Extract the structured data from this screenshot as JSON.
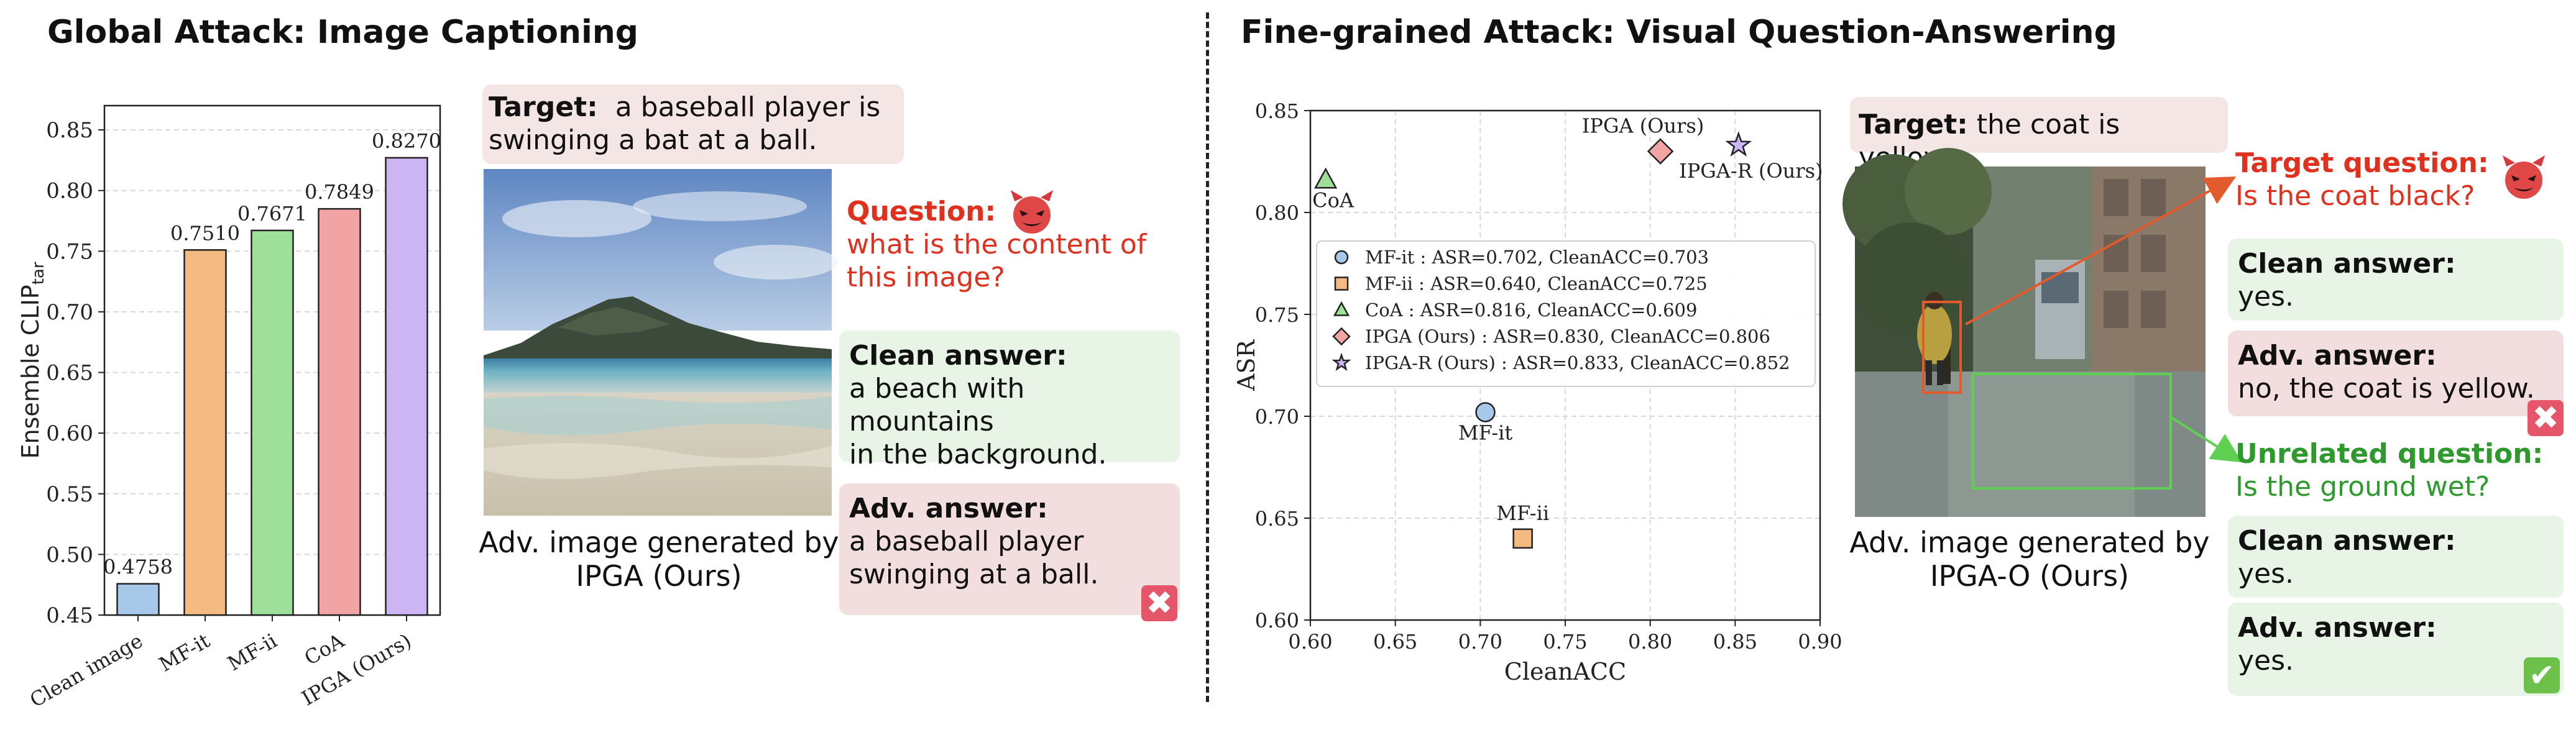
{
  "left_title": "Global Attack: Image Captioning",
  "right_title": "Fine-grained Attack: Visual Question-Answering",
  "chart_data": [
    {
      "type": "bar",
      "title": "",
      "ylabel": "Ensemble CLIP",
      "ylabel_sub": "tar",
      "xlabel": "",
      "ylim": [
        0.45,
        0.87
      ],
      "yticks": [
        "0.45",
        "0.50",
        "0.55",
        "0.60",
        "0.65",
        "0.70",
        "0.75",
        "0.80",
        "0.85"
      ],
      "grid": true,
      "categories": [
        "Clean image",
        "MF-it",
        "MF-ii",
        "CoA",
        "IPGA (Ours)"
      ],
      "values": [
        0.4758,
        0.751,
        0.7671,
        0.7849,
        0.827
      ],
      "value_labels": [
        "0.4758",
        "0.7510",
        "0.7671",
        "0.7849",
        "0.8270"
      ],
      "colors": [
        "#a8c8ea",
        "#f5b982",
        "#9ee09a",
        "#f2a4a4",
        "#cbb5f2"
      ]
    },
    {
      "type": "scatter",
      "title": "",
      "xlabel": "CleanACC",
      "ylabel": "ASR",
      "xlim": [
        0.6,
        0.9
      ],
      "ylim": [
        0.6,
        0.85
      ],
      "xticks": [
        "0.60",
        "0.65",
        "0.70",
        "0.75",
        "0.80",
        "0.85",
        "0.90"
      ],
      "yticks": [
        "0.60",
        "0.65",
        "0.70",
        "0.75",
        "0.80",
        "0.85"
      ],
      "grid": true,
      "legend_position": "center-left",
      "series": [
        {
          "name": "MF-it",
          "label": "MF-it",
          "x": 0.703,
          "y": 0.702,
          "marker": "circle",
          "color": "#a8c8ea",
          "legend": "MF-it : ASR=0.702, CleanACC=0.703"
        },
        {
          "name": "MF-ii",
          "label": "MF-ii",
          "x": 0.725,
          "y": 0.64,
          "marker": "square",
          "color": "#f5b982",
          "legend": "MF-ii : ASR=0.640, CleanACC=0.725"
        },
        {
          "name": "CoA",
          "label": "CoA",
          "x": 0.609,
          "y": 0.816,
          "marker": "triangle",
          "color": "#9ee09a",
          "legend": "CoA : ASR=0.816, CleanACC=0.609"
        },
        {
          "name": "IPGA (Ours)",
          "label": "IPGA (Ours)",
          "x": 0.806,
          "y": 0.83,
          "marker": "diamond",
          "color": "#f2a4a4",
          "legend": "IPGA (Ours) : ASR=0.830, CleanACC=0.806"
        },
        {
          "name": "IPGA-R (Ours)",
          "label": "IPGA-R (Ours)",
          "x": 0.852,
          "y": 0.833,
          "marker": "star",
          "color": "#cbb5f2",
          "legend": "IPGA-R (Ours) : ASR=0.833, CleanACC=0.852"
        }
      ]
    }
  ],
  "captioning": {
    "target_label": "Target:",
    "target_text_1": "a baseball player is",
    "target_text_2": "swinging a bat at a ball.",
    "question_label": "Question:",
    "question_text_1": "what is the content of",
    "question_text_2": "this image?",
    "clean_label": "Clean answer:",
    "clean_text_1": "a beach with mountains",
    "clean_text_2": "in the background.",
    "adv_label": "Adv. answer:",
    "adv_text_1": "a baseball player",
    "adv_text_2": "swinging at a ball.",
    "image_caption_1": "Adv. image generated by",
    "image_caption_2": "IPGA (Ours)",
    "x_mark": "✖"
  },
  "vqa": {
    "target_label": "Target:",
    "target_text": "the coat is yellow.",
    "target_q_label": "Target question:",
    "target_q_text": "Is the coat black?",
    "clean1_label": "Clean answer:",
    "clean1_text": "yes.",
    "adv1_label": "Adv. answer:",
    "adv1_text": "no, the coat is yellow.",
    "unrel_q_label": "Unrelated question:",
    "unrel_q_text": "Is the ground wet?",
    "clean2_label": "Clean answer:",
    "clean2_text": "yes.",
    "adv2_label": "Adv. answer:",
    "adv2_text": "yes.",
    "image_caption_1": "Adv. image generated by",
    "image_caption_2": "IPGA-O (Ours)",
    "x_mark": "✖",
    "check_mark": "✔"
  }
}
